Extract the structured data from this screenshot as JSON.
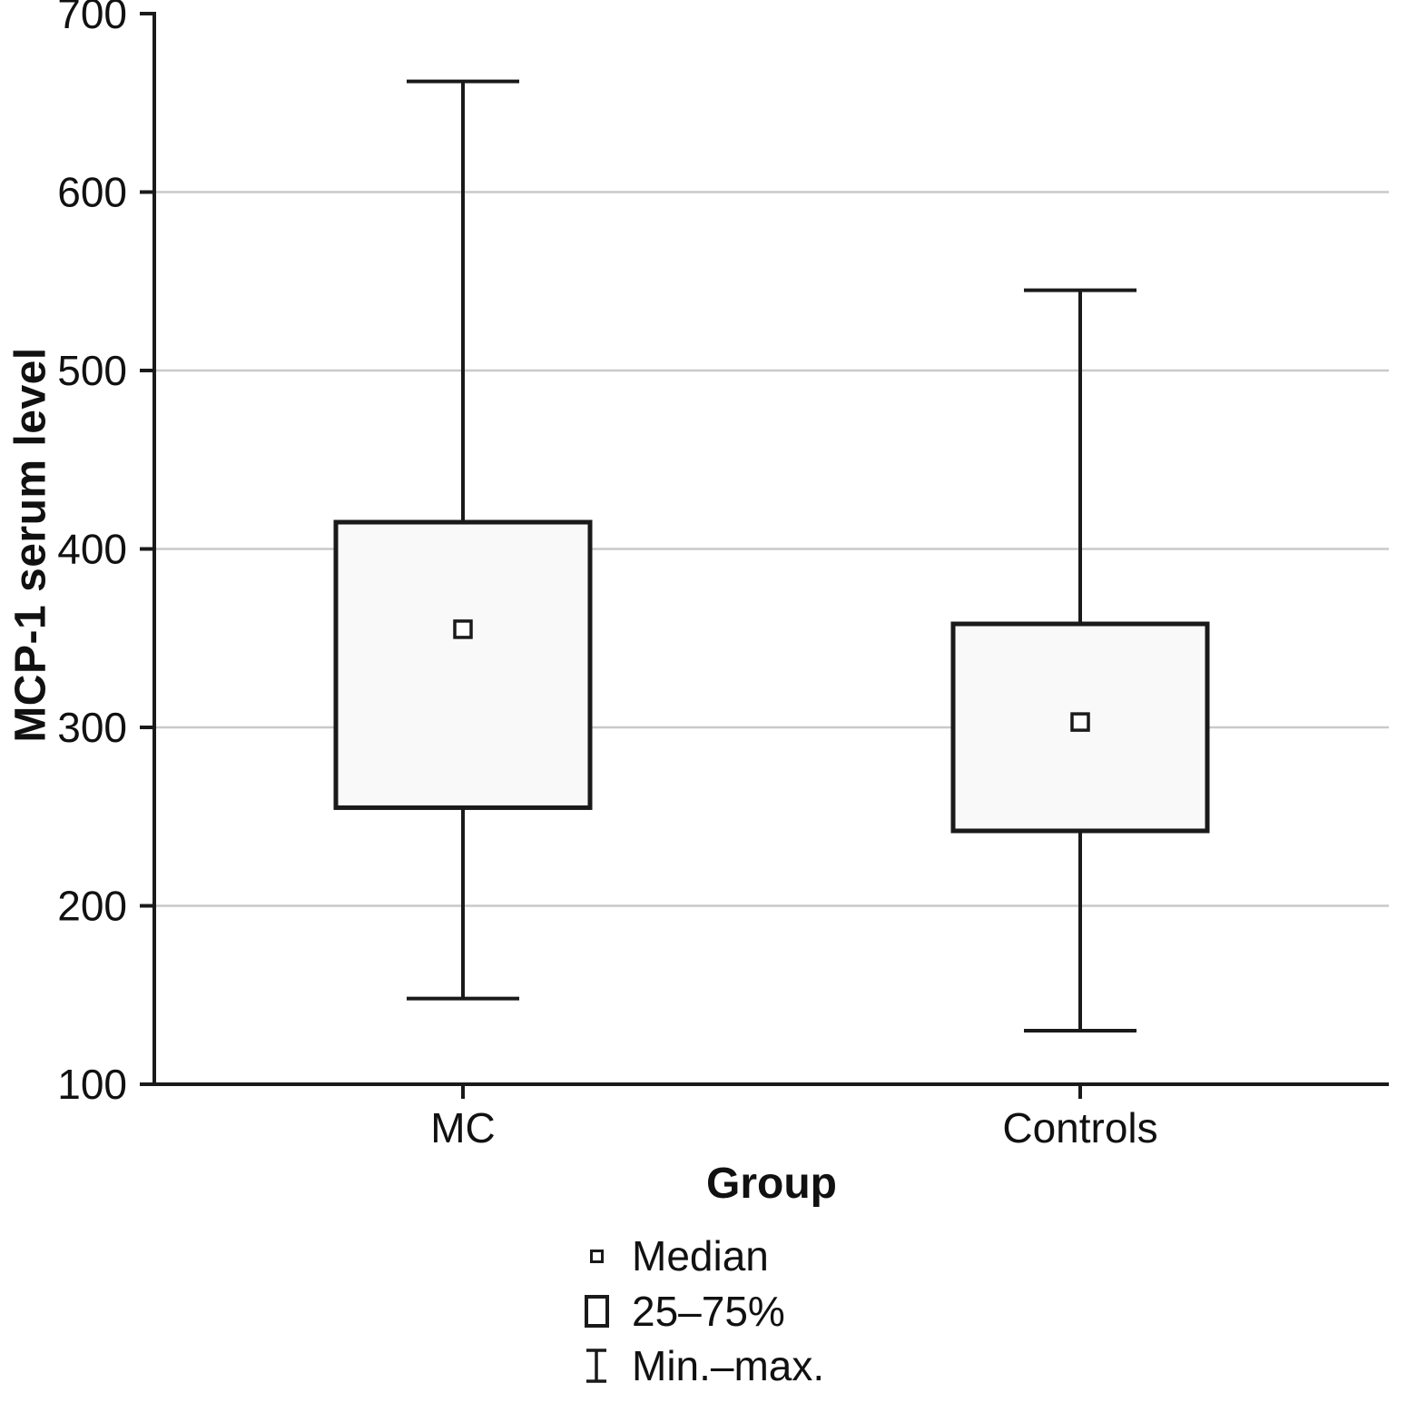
{
  "chart_data": {
    "type": "boxplot",
    "title": "",
    "xlabel": "Group",
    "ylabel": "MCP-1 serum level",
    "ylim": [
      100,
      700
    ],
    "yticks": [
      100,
      200,
      300,
      400,
      500,
      600,
      700
    ],
    "gridlines": [
      200,
      300,
      400,
      500,
      600
    ],
    "categories": [
      "MC",
      "Controls"
    ],
    "series": [
      {
        "name": "MC",
        "min": 148,
        "q1": 255,
        "median": 355,
        "q3": 415,
        "max": 662
      },
      {
        "name": "Controls",
        "min": 130,
        "q1": 242,
        "median": 303,
        "q3": 358,
        "max": 545
      }
    ],
    "legend": [
      {
        "icon": "median-square-icon",
        "label": "Median"
      },
      {
        "icon": "box-25-75-icon",
        "label": "25–75%"
      },
      {
        "icon": "min-max-whisker-icon",
        "label": "Min.–max."
      }
    ],
    "legend_position": "bottom-center",
    "grid": "horizontal",
    "colors": {
      "box_fill": "#f9f9f9",
      "line": "#1a1a1a",
      "grid": "#c9c9c9",
      "background": "#ffffff"
    }
  }
}
